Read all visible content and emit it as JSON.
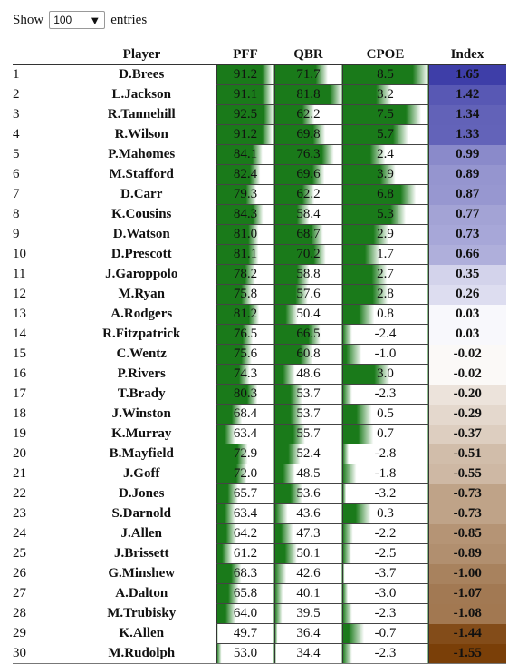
{
  "controls": {
    "show_label": "Show",
    "page_length": "100",
    "entries_label": "entries"
  },
  "colors": {
    "bar_green": "#1a7a1a",
    "index_purple": "#3e3ea8",
    "index_brown": "#7a3f08"
  },
  "columns": [
    "",
    "Player",
    "PFF",
    "QBR",
    "CPOE",
    "Index"
  ],
  "rows": [
    {
      "rank": "1",
      "player": "D.Brees",
      "pff": "91.2",
      "qbr": "71.7",
      "cpoe": "8.5",
      "index": "1.65"
    },
    {
      "rank": "2",
      "player": "L.Jackson",
      "pff": "91.1",
      "qbr": "81.8",
      "cpoe": "3.2",
      "index": "1.42"
    },
    {
      "rank": "3",
      "player": "R.Tannehill",
      "pff": "92.5",
      "qbr": "62.2",
      "cpoe": "7.5",
      "index": "1.34"
    },
    {
      "rank": "4",
      "player": "R.Wilson",
      "pff": "91.2",
      "qbr": "69.8",
      "cpoe": "5.7",
      "index": "1.33"
    },
    {
      "rank": "5",
      "player": "P.Mahomes",
      "pff": "84.1",
      "qbr": "76.3",
      "cpoe": "2.4",
      "index": "0.99"
    },
    {
      "rank": "6",
      "player": "M.Stafford",
      "pff": "82.4",
      "qbr": "69.6",
      "cpoe": "3.9",
      "index": "0.89"
    },
    {
      "rank": "7",
      "player": "D.Carr",
      "pff": "79.3",
      "qbr": "62.2",
      "cpoe": "6.8",
      "index": "0.87"
    },
    {
      "rank": "8",
      "player": "K.Cousins",
      "pff": "84.3",
      "qbr": "58.4",
      "cpoe": "5.3",
      "index": "0.77"
    },
    {
      "rank": "9",
      "player": "D.Watson",
      "pff": "81.0",
      "qbr": "68.7",
      "cpoe": "2.9",
      "index": "0.73"
    },
    {
      "rank": "10",
      "player": "D.Prescott",
      "pff": "81.1",
      "qbr": "70.2",
      "cpoe": "1.7",
      "index": "0.66"
    },
    {
      "rank": "11",
      "player": "J.Garoppolo",
      "pff": "78.2",
      "qbr": "58.8",
      "cpoe": "2.7",
      "index": "0.35"
    },
    {
      "rank": "12",
      "player": "M.Ryan",
      "pff": "75.8",
      "qbr": "57.6",
      "cpoe": "2.8",
      "index": "0.26"
    },
    {
      "rank": "13",
      "player": "A.Rodgers",
      "pff": "81.2",
      "qbr": "50.4",
      "cpoe": "0.8",
      "index": "0.03"
    },
    {
      "rank": "14",
      "player": "R.Fitzpatrick",
      "pff": "76.5",
      "qbr": "66.5",
      "cpoe": "-2.4",
      "index": "0.03"
    },
    {
      "rank": "15",
      "player": "C.Wentz",
      "pff": "75.6",
      "qbr": "60.8",
      "cpoe": "-1.0",
      "index": "-0.02"
    },
    {
      "rank": "16",
      "player": "P.Rivers",
      "pff": "74.3",
      "qbr": "48.6",
      "cpoe": "3.0",
      "index": "-0.02"
    },
    {
      "rank": "17",
      "player": "T.Brady",
      "pff": "80.3",
      "qbr": "53.7",
      "cpoe": "-2.3",
      "index": "-0.20"
    },
    {
      "rank": "18",
      "player": "J.Winston",
      "pff": "68.4",
      "qbr": "53.7",
      "cpoe": "0.5",
      "index": "-0.29"
    },
    {
      "rank": "19",
      "player": "K.Murray",
      "pff": "63.4",
      "qbr": "55.7",
      "cpoe": "0.7",
      "index": "-0.37"
    },
    {
      "rank": "20",
      "player": "B.Mayfield",
      "pff": "72.9",
      "qbr": "52.4",
      "cpoe": "-2.8",
      "index": "-0.51"
    },
    {
      "rank": "21",
      "player": "J.Goff",
      "pff": "72.0",
      "qbr": "48.5",
      "cpoe": "-1.8",
      "index": "-0.55"
    },
    {
      "rank": "22",
      "player": "D.Jones",
      "pff": "65.7",
      "qbr": "53.6",
      "cpoe": "-3.2",
      "index": "-0.73"
    },
    {
      "rank": "23",
      "player": "S.Darnold",
      "pff": "63.4",
      "qbr": "43.6",
      "cpoe": "0.3",
      "index": "-0.73"
    },
    {
      "rank": "24",
      "player": "J.Allen",
      "pff": "64.2",
      "qbr": "47.3",
      "cpoe": "-2.2",
      "index": "-0.85"
    },
    {
      "rank": "25",
      "player": "J.Brissett",
      "pff": "61.2",
      "qbr": "50.1",
      "cpoe": "-2.5",
      "index": "-0.89"
    },
    {
      "rank": "26",
      "player": "G.Minshew",
      "pff": "68.3",
      "qbr": "42.6",
      "cpoe": "-3.7",
      "index": "-1.00"
    },
    {
      "rank": "27",
      "player": "A.Dalton",
      "pff": "65.8",
      "qbr": "40.1",
      "cpoe": "-3.0",
      "index": "-1.07"
    },
    {
      "rank": "28",
      "player": "M.Trubisky",
      "pff": "64.0",
      "qbr": "39.5",
      "cpoe": "-2.3",
      "index": "-1.08"
    },
    {
      "rank": "29",
      "player": "K.Allen",
      "pff": "49.7",
      "qbr": "36.4",
      "cpoe": "-0.7",
      "index": "-1.44"
    },
    {
      "rank": "30",
      "player": "M.Rudolph",
      "pff": "53.0",
      "qbr": "34.4",
      "cpoe": "-2.3",
      "index": "-1.55"
    }
  ]
}
